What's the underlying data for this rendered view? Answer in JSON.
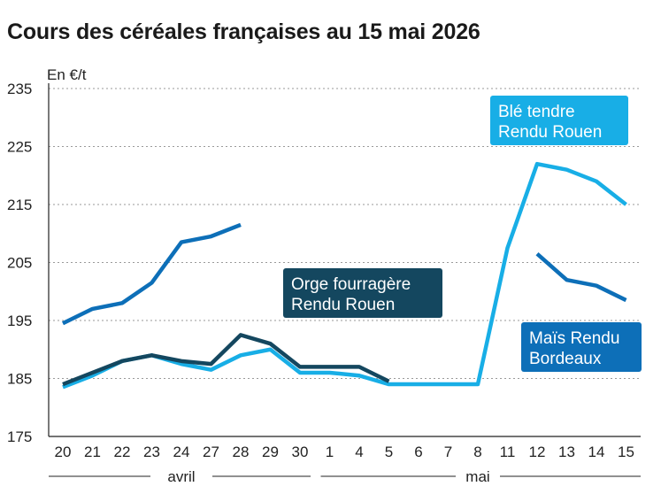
{
  "title": "Cours des céréales françaises au 15 mai 2026",
  "chart_data": {
    "type": "line",
    "title": "Cours des céréales françaises au 15 mai 2026",
    "ylabel": "En €/t",
    "ylim": [
      175,
      235
    ],
    "yticks": [
      175,
      185,
      195,
      205,
      215,
      225,
      235
    ],
    "grid": "horizontal dotted",
    "categories": [
      "20",
      "21",
      "22",
      "23",
      "24",
      "27",
      "28",
      "29",
      "30",
      "1",
      "4",
      "5",
      "6",
      "7",
      "8",
      "11",
      "12",
      "13",
      "14",
      "15"
    ],
    "months": [
      {
        "label": "avril",
        "from": 0,
        "to": 8
      },
      {
        "label": "mai",
        "from": 9,
        "to": 19
      }
    ],
    "series": [
      {
        "name": "Blé tendre Rendu Rouen",
        "color": "#18aee6",
        "values": [
          183.5,
          185.5,
          188,
          189,
          187.5,
          186.5,
          189,
          190,
          186,
          186,
          185.5,
          184,
          184,
          184,
          184,
          207.5,
          222,
          221,
          219,
          215
        ]
      },
      {
        "name": "Orge fourragère Rendu Rouen",
        "color": "#14475f",
        "values": [
          184,
          186,
          188,
          189,
          188,
          187.5,
          192.5,
          191,
          187,
          187,
          187,
          184.5,
          null,
          null,
          null,
          null,
          null,
          null,
          null,
          null
        ]
      },
      {
        "name": "Maïs Rendu Bordeaux",
        "color": "#0d6fb8",
        "values": [
          194.5,
          197,
          198,
          201.5,
          208.5,
          209.5,
          211.5,
          null,
          null,
          null,
          null,
          null,
          null,
          null,
          null,
          null,
          206.5,
          202,
          201,
          198.5
        ]
      }
    ],
    "legend": [
      {
        "lines": [
          "Blé tendre",
          "Rendu Rouen"
        ],
        "color": "#18aee6"
      },
      {
        "lines": [
          "Orge fourragère",
          "Rendu Rouen"
        ],
        "color": "#14475f"
      },
      {
        "lines": [
          "Maïs Rendu",
          "Bordeaux"
        ],
        "color": "#0d6fb8"
      }
    ]
  }
}
